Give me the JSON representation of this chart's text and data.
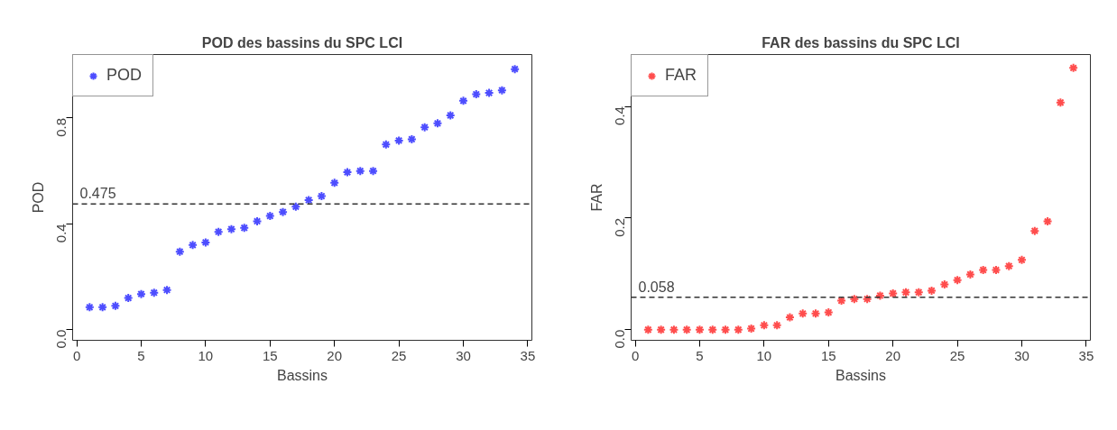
{
  "chart_data": [
    {
      "type": "scatter",
      "title": "POD des bassins du SPC LCI",
      "xlabel": "Bassins",
      "ylabel": "POD",
      "x": [
        1,
        2,
        3,
        4,
        5,
        6,
        7,
        8,
        9,
        10,
        11,
        12,
        13,
        14,
        15,
        16,
        17,
        18,
        19,
        20,
        21,
        22,
        23,
        24,
        25,
        26,
        27,
        28,
        29,
        30,
        31,
        32,
        33,
        34
      ],
      "series": [
        {
          "name": "POD",
          "color": "#4d4dff",
          "values": [
            0.085,
            0.085,
            0.09,
            0.12,
            0.135,
            0.14,
            0.15,
            0.295,
            0.32,
            0.33,
            0.37,
            0.38,
            0.385,
            0.41,
            0.43,
            0.445,
            0.465,
            0.49,
            0.505,
            0.555,
            0.595,
            0.6,
            0.6,
            0.7,
            0.715,
            0.72,
            0.765,
            0.78,
            0.81,
            0.865,
            0.89,
            0.895,
            0.905,
            0.985
          ]
        }
      ],
      "xlim": [
        -0.32,
        35.32
      ],
      "ylim": [
        -0.04,
        1.04
      ],
      "xticks": [
        0,
        5,
        10,
        15,
        20,
        25,
        30,
        35
      ],
      "yticks": [
        {
          "value": 0,
          "label": "0.0"
        },
        {
          "value": 0.4,
          "label": "0.4"
        },
        {
          "value": 0.8,
          "label": "0.8"
        }
      ],
      "ref_lines": [
        {
          "axis": "y",
          "value": 0.475,
          "label": "0.475",
          "line_style": "dashed",
          "color": "#333333"
        }
      ],
      "marker": "cross",
      "legend": "top left",
      "grid": false
    },
    {
      "type": "scatter",
      "title": "FAR des bassins du SPC LCI",
      "xlabel": "Bassins",
      "ylabel": "FAR",
      "x": [
        1,
        2,
        3,
        4,
        5,
        6,
        7,
        8,
        9,
        10,
        11,
        12,
        13,
        14,
        15,
        16,
        17,
        18,
        19,
        20,
        21,
        22,
        23,
        24,
        25,
        26,
        27,
        28,
        29,
        30,
        31,
        32,
        33,
        34
      ],
      "series": [
        {
          "name": "FAR",
          "color": "#ff4d4d",
          "values": [
            0,
            0,
            0,
            0,
            0,
            0,
            0,
            0,
            0.002,
            0.008,
            0.008,
            0.022,
            0.029,
            0.029,
            0.031,
            0.052,
            0.055,
            0.055,
            0.061,
            0.065,
            0.067,
            0.067,
            0.07,
            0.081,
            0.089,
            0.099,
            0.107,
            0.107,
            0.114,
            0.125,
            0.177,
            0.194,
            0.407,
            0.469
          ]
        }
      ],
      "xlim": [
        -0.32,
        35.32
      ],
      "ylim": [
        -0.019,
        0.493
      ],
      "xticks": [
        0,
        5,
        10,
        15,
        20,
        25,
        30,
        35
      ],
      "yticks": [
        {
          "value": 0,
          "label": "0.0"
        },
        {
          "value": 0.2,
          "label": "0.2"
        },
        {
          "value": 0.4,
          "label": "0.4"
        }
      ],
      "ref_lines": [
        {
          "axis": "y",
          "value": 0.058,
          "label": "0.058",
          "line_style": "dashed",
          "color": "#333333"
        }
      ],
      "marker": "cross",
      "legend": "top left",
      "grid": false
    }
  ]
}
